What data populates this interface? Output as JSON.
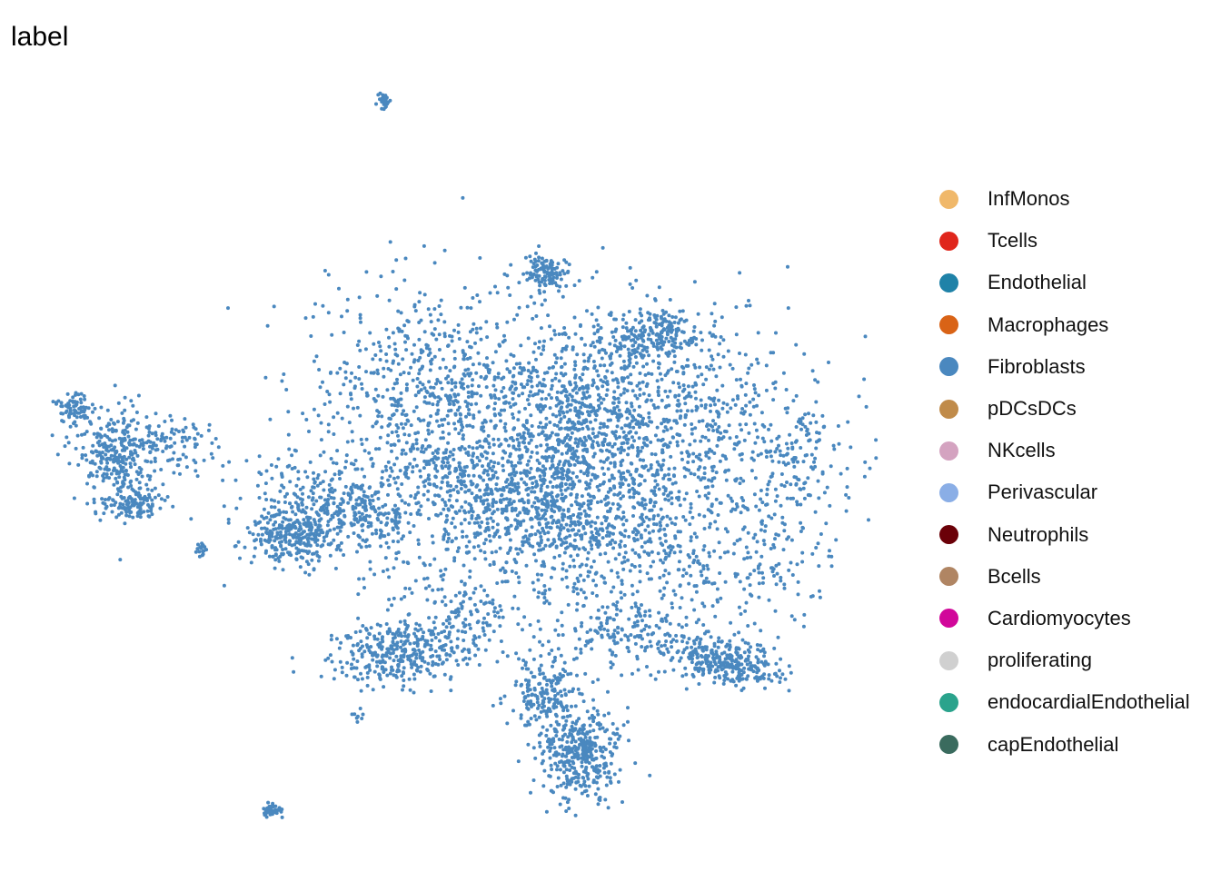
{
  "chart_data": {
    "type": "scatter",
    "title": "label",
    "xlabel": "",
    "ylabel": "",
    "axes_visible": false,
    "grid": false,
    "legend_position": "right",
    "point_color": "#4a88bf",
    "legend": [
      {
        "name": "InfMonos",
        "color": "#f0b86a"
      },
      {
        "name": "Tcells",
        "color": "#e0261c"
      },
      {
        "name": "Endothelial",
        "color": "#1f82a8"
      },
      {
        "name": "Macrophages",
        "color": "#d96316"
      },
      {
        "name": "Fibroblasts",
        "color": "#4a88bf"
      },
      {
        "name": "pDCsDCs",
        "color": "#c08b4a"
      },
      {
        "name": "NKcells",
        "color": "#d4a3c0"
      },
      {
        "name": "Perivascular",
        "color": "#8aaee6"
      },
      {
        "name": "Neutrophils",
        "color": "#6b0008"
      },
      {
        "name": "Bcells",
        "color": "#b08563"
      },
      {
        "name": "Cardiomyocytes",
        "color": "#d1079a"
      },
      {
        "name": "proliferating",
        "color": "#d0d0d0"
      },
      {
        "name": "endocardialEndothelial",
        "color": "#2aa38c"
      },
      {
        "name": "capEndothelial",
        "color": "#3a6b5e"
      }
    ]
  }
}
